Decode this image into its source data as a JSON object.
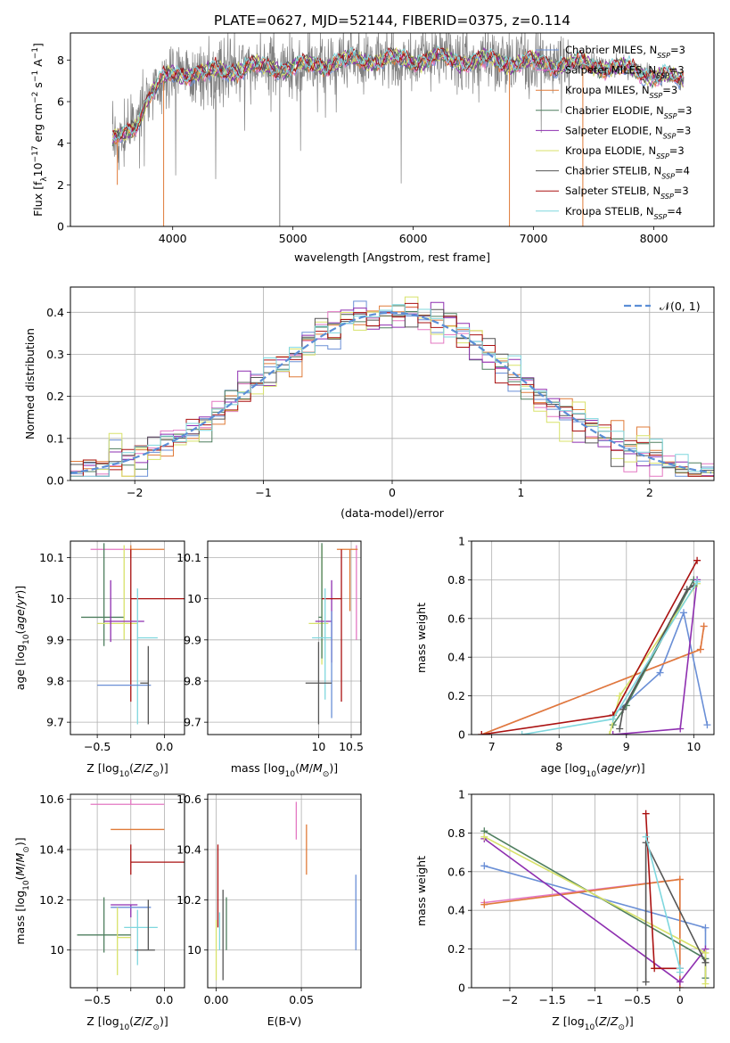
{
  "figure_title": "PLATE=0627, MJD=52144, FIBERID=0375, z=0.114",
  "colors": {
    "Chabrier MILES": "#6a8fd6",
    "Salpeter MILES": "#e377c2",
    "Kroupa MILES": "#e07b39",
    "Chabrier ELODIE": "#4f7f5f",
    "Salpeter ELODIE": "#8e2fb0",
    "Kroupa ELODIE": "#d8e26a",
    "Chabrier STELIB": "#555555",
    "Salpeter STELIB": "#aa1111",
    "Kroupa STELIB": "#7fd7de",
    "data": "#808080",
    "normal": "#5b8ed6"
  },
  "chart_data": [
    {
      "id": "spectrum",
      "type": "line",
      "xlabel": "wavelength [Angstrom, rest frame]",
      "ylabel": "Flux [f_λ 10^-17 erg cm^-2 s^-1 A^-1]",
      "xlim": [
        3150,
        8500
      ],
      "ylim": [
        0,
        9.3
      ],
      "xticks": [
        4000,
        5000,
        6000,
        7000,
        8000
      ],
      "yticks": [
        0,
        2,
        4,
        6,
        8
      ],
      "grid": false,
      "legend_position": "right",
      "legend": [
        {
          "label": "Chabrier MILES, N",
          "sub": "SSP",
          "suffix": "=3",
          "color": "#6a8fd6"
        },
        {
          "label": "Salpeter MILES, N",
          "sub": "SSP",
          "suffix": "=3",
          "color": "#e377c2"
        },
        {
          "label": "Kroupa MILES, N",
          "sub": "SSP",
          "suffix": "=3",
          "color": "#e07b39"
        },
        {
          "label": "Chabrier ELODIE, N",
          "sub": "SSP",
          "suffix": "=3",
          "color": "#4f7f5f"
        },
        {
          "label": "Salpeter ELODIE, N",
          "sub": "SSP",
          "suffix": "=3",
          "color": "#8e2fb0"
        },
        {
          "label": "Kroupa ELODIE, N",
          "sub": "SSP",
          "suffix": "=3",
          "color": "#d8e26a"
        },
        {
          "label": "Chabrier STELIB, N",
          "sub": "SSP",
          "suffix": "=4",
          "color": "#555555"
        },
        {
          "label": "Salpeter STELIB, N",
          "sub": "SSP",
          "suffix": "=3",
          "color": "#aa1111"
        },
        {
          "label": "Kroupa STELIB, N",
          "sub": "SSP",
          "suffix": "=4",
          "color": "#7fd7de"
        }
      ],
      "model_continuum": {
        "x": [
          3500,
          3600,
          3700,
          3800,
          3900,
          4000,
          4100,
          4200,
          4300,
          4400,
          4600,
          4800,
          5000,
          5200,
          5400,
          5600,
          5800,
          6000,
          6200,
          6400,
          6600,
          6800,
          7000,
          7200,
          7400,
          7600,
          7800,
          8000,
          8250
        ],
        "y": [
          4.1,
          4.3,
          5.0,
          6.3,
          6.9,
          7.3,
          7.4,
          7.4,
          7.3,
          7.5,
          7.6,
          7.7,
          7.6,
          7.8,
          7.9,
          8.0,
          8.0,
          8.0,
          8.05,
          8.0,
          7.95,
          7.9,
          7.85,
          7.8,
          7.8,
          7.7,
          7.5,
          7.3,
          7.0
        ]
      },
      "spike_drops": [
        {
          "x": 3540,
          "y0": 2.0,
          "color": "#e07b39"
        },
        {
          "x": 3925,
          "y0": 0,
          "color": "#e07b39"
        },
        {
          "x": 4890,
          "y0": 0,
          "color": "#808080"
        },
        {
          "x": 6800,
          "y0": 0,
          "color": "#e07b39"
        },
        {
          "x": 7410,
          "y0": 0,
          "color": "#e07b39"
        }
      ]
    },
    {
      "id": "residuals",
      "type": "histogram",
      "xlabel": "(data-model)/error",
      "ylabel": "Normed distribution",
      "xlim": [
        -2.5,
        2.5
      ],
      "ylim": [
        0,
        0.46
      ],
      "xticks": [
        -2,
        -1,
        0,
        1,
        2
      ],
      "yticks": [
        0.0,
        0.1,
        0.2,
        0.3,
        0.4
      ],
      "grid": true,
      "legend_position": "top-right",
      "legend_label": "𝒩(0, 1)"
    },
    {
      "id": "age_vs_Z",
      "type": "errorbar",
      "xlabel": "Z [log10(Z/Z⊙)]",
      "ylabel": "age  [log10(age/yr)]",
      "xlim": [
        -0.7,
        0.15
      ],
      "ylim": [
        9.67,
        10.14
      ],
      "xticks": [
        -0.5,
        -0.25,
        0.0
      ],
      "xticklabels": [
        "−0.5",
        "",
        "0.0"
      ],
      "yticks": [
        9.7,
        9.8,
        9.9,
        10.0,
        10.1
      ],
      "grid": true,
      "points": [
        {
          "c": "#e377c2",
          "x": -0.25,
          "xerr": [
            0.3,
            0.0
          ],
          "y": 10.12,
          "yerr": [
            0.0,
            0.0
          ]
        },
        {
          "c": "#e07b39",
          "x": -0.25,
          "xerr": [
            0.0,
            0.25
          ],
          "y": 10.12,
          "yerr": [
            0.02,
            0.01
          ]
        },
        {
          "c": "#4f7f5f",
          "x": -0.45,
          "xerr": [
            0.17,
            0.15
          ],
          "y": 9.955,
          "yerr": [
            0.07,
            0.18
          ]
        },
        {
          "c": "#d8e26a",
          "x": -0.3,
          "xerr": [
            0.2,
            0.1
          ],
          "y": 9.94,
          "yerr": [
            0.04,
            0.19
          ]
        },
        {
          "c": "#aa1111",
          "x": -0.25,
          "xerr": [
            0.0,
            0.4
          ],
          "y": 10.0,
          "yerr": [
            0.25,
            0.12
          ]
        },
        {
          "c": "#8e2fb0",
          "x": -0.4,
          "xerr": [
            0.05,
            0.25
          ],
          "y": 9.945,
          "yerr": [
            0.05,
            0.1
          ]
        },
        {
          "c": "#7fd7de",
          "x": -0.2,
          "xerr": [
            0.0,
            0.15
          ],
          "y": 9.905,
          "yerr": [
            0.21,
            0.12
          ]
        },
        {
          "c": "#6a8fd6",
          "x": -0.5,
          "xerr": [
            0.0,
            0.4
          ],
          "y": 9.79,
          "yerr": [
            0.0,
            0.0
          ]
        },
        {
          "c": "#555555",
          "x": -0.12,
          "xerr": [
            0.06,
            0.0
          ],
          "y": 9.795,
          "yerr": [
            0.1,
            0.09
          ]
        }
      ]
    },
    {
      "id": "age_vs_mass",
      "type": "errorbar",
      "xlabel": "mass [log10(M/M⊙)]",
      "ylabel": "",
      "xlim": [
        8.3,
        10.65
      ],
      "ylim": [
        9.67,
        10.14
      ],
      "xticks": [
        10.0,
        10.5
      ],
      "yticks": [
        9.7,
        9.8,
        9.9,
        10.0,
        10.1
      ],
      "grid": true,
      "points": [
        {
          "c": "#e377c2",
          "x": 10.58,
          "xerr": [
            0.0,
            0.0
          ],
          "y": 10.12,
          "yerr": [
            0.22,
            0.01
          ]
        },
        {
          "c": "#e07b39",
          "x": 10.48,
          "xerr": [
            0.2,
            0.12
          ],
          "y": 10.12,
          "yerr": [
            0.15,
            0.0
          ]
        },
        {
          "c": "#d8e26a",
          "x": 10.05,
          "xerr": [
            0.2,
            0.1
          ],
          "y": 9.94,
          "yerr": [
            0.1,
            0.19
          ]
        },
        {
          "c": "#4f7f5f",
          "x": 10.05,
          "xerr": [
            0.05,
            0.0
          ],
          "y": 9.955,
          "yerr": [
            0.1,
            0.18
          ]
        },
        {
          "c": "#8e2fb0",
          "x": 10.2,
          "xerr": [
            0.25,
            0.0
          ],
          "y": 9.945,
          "yerr": [
            0.1,
            0.1
          ]
        },
        {
          "c": "#aa1111",
          "x": 10.35,
          "xerr": [
            0.3,
            0.0
          ],
          "y": 10.0,
          "yerr": [
            0.25,
            0.12
          ]
        },
        {
          "c": "#7fd7de",
          "x": 10.1,
          "xerr": [
            0.2,
            0.1
          ],
          "y": 9.905,
          "yerr": [
            0.15,
            0.12
          ]
        },
        {
          "c": "#6a8fd6",
          "x": 10.2,
          "xerr": [
            0.0,
            0.0
          ],
          "y": 9.79,
          "yerr": [
            0.08,
            0.18
          ]
        },
        {
          "c": "#555555",
          "x": 10.0,
          "xerr": [
            0.2,
            0.2
          ],
          "y": 9.795,
          "yerr": [
            0.1,
            0.1
          ]
        }
      ]
    },
    {
      "id": "weight_vs_age",
      "type": "line",
      "xlabel": "age  [log10(age/yr)]",
      "ylabel": "mass weight",
      "xlim": [
        6.7,
        10.3
      ],
      "ylim": [
        0.0,
        1.0
      ],
      "xticks": [
        7,
        8,
        9,
        10
      ],
      "yticks": [
        0.0,
        0.2,
        0.4,
        0.6,
        0.8,
        1.0
      ],
      "grid": true,
      "series": [
        {
          "c": "#6a8fd6",
          "x": [
            8.8,
            9.5,
            9.85,
            10.2
          ],
          "y": [
            0.1,
            0.32,
            0.63,
            0.05
          ]
        },
        {
          "c": "#e377c2",
          "x": [
            6.85,
            10.1,
            10.15
          ],
          "y": [
            0.0,
            0.44,
            0.56
          ]
        },
        {
          "c": "#e07b39",
          "x": [
            6.85,
            10.1,
            10.15
          ],
          "y": [
            0.0,
            0.44,
            0.56
          ]
        },
        {
          "c": "#4f7f5f",
          "x": [
            8.8,
            9.0,
            10.0
          ],
          "y": [
            0.05,
            0.15,
            0.8
          ]
        },
        {
          "c": "#8e2fb0",
          "x": [
            8.8,
            9.8,
            10.05
          ],
          "y": [
            0.0,
            0.03,
            0.8
          ]
        },
        {
          "c": "#d8e26a",
          "x": [
            8.75,
            8.9,
            10.05
          ],
          "y": [
            0.0,
            0.2,
            0.78
          ]
        },
        {
          "c": "#555555",
          "x": [
            8.9,
            8.95,
            9.9,
            10.0
          ],
          "y": [
            0.03,
            0.13,
            0.75,
            0.77
          ]
        },
        {
          "c": "#aa1111",
          "x": [
            6.85,
            8.8,
            10.05
          ],
          "y": [
            0.0,
            0.1,
            0.9
          ]
        },
        {
          "c": "#7fd7de",
          "x": [
            7.45,
            8.8,
            10.05
          ],
          "y": [
            0.0,
            0.08,
            0.79
          ]
        }
      ]
    },
    {
      "id": "mass_vs_Z",
      "type": "errorbar",
      "xlabel": "Z [log10(Z/Z⊙)]",
      "ylabel": "mass [log10(M/M⊙)]",
      "xlim": [
        -0.7,
        0.15
      ],
      "ylim": [
        9.85,
        10.62
      ],
      "xticks": [
        -0.5,
        -0.25,
        0.0
      ],
      "xticklabels": [
        "−0.5",
        "",
        "0.0"
      ],
      "yticks": [
        10.0,
        10.2,
        10.4,
        10.6
      ],
      "grid": true,
      "points": [
        {
          "c": "#e377c2",
          "x": -0.25,
          "xerr": [
            0.3,
            0.25
          ],
          "y": 10.58,
          "yerr": [
            0.0,
            0.02
          ]
        },
        {
          "c": "#e07b39",
          "x": -0.25,
          "xerr": [
            0.15,
            0.25
          ],
          "y": 10.48,
          "yerr": [
            0.0,
            0.0
          ]
        },
        {
          "c": "#aa1111",
          "x": -0.25,
          "xerr": [
            0.0,
            0.4
          ],
          "y": 10.35,
          "yerr": [
            0.05,
            0.07
          ]
        },
        {
          "c": "#8e2fb0",
          "x": -0.25,
          "xerr": [
            0.15,
            0.05
          ],
          "y": 10.18,
          "yerr": [
            0.05,
            0.0
          ]
        },
        {
          "c": "#6a8fd6",
          "x": -0.4,
          "xerr": [
            0.0,
            0.3
          ],
          "y": 10.17,
          "yerr": [
            0.0,
            0.0
          ]
        },
        {
          "c": "#7fd7de",
          "x": -0.2,
          "xerr": [
            0.1,
            0.15
          ],
          "y": 10.09,
          "yerr": [
            0.15,
            0.07
          ]
        },
        {
          "c": "#4f7f5f",
          "x": -0.45,
          "xerr": [
            0.2,
            0.2
          ],
          "y": 10.06,
          "yerr": [
            0.07,
            0.15
          ]
        },
        {
          "c": "#d8e26a",
          "x": -0.35,
          "xerr": [
            0.0,
            0.1
          ],
          "y": 10.05,
          "yerr": [
            0.15,
            0.12
          ]
        },
        {
          "c": "#555555",
          "x": -0.12,
          "xerr": [
            0.1,
            0.05
          ],
          "y": 10.0,
          "yerr": [
            0.0,
            0.2
          ]
        }
      ]
    },
    {
      "id": "mass_vs_ebv",
      "type": "errorbar",
      "xlabel": "E(B-V)",
      "ylabel": "",
      "xlim": [
        -0.005,
        0.085
      ],
      "ylim": [
        9.85,
        10.62
      ],
      "xticks": [
        0.0,
        0.05
      ],
      "xticklabels": [
        "0.00",
        "0.05"
      ],
      "yticks": [
        10.0,
        10.2,
        10.4,
        10.6
      ],
      "grid": true,
      "points": [
        {
          "c": "#e377c2",
          "x": 0.047,
          "xerr": [
            0.0,
            0.0
          ],
          "y": 10.51,
          "yerr": [
            0.07,
            0.08
          ]
        },
        {
          "c": "#e07b39",
          "x": 0.053,
          "xerr": [
            0.0,
            0.0
          ],
          "y": 10.4,
          "yerr": [
            0.1,
            0.1
          ]
        },
        {
          "c": "#aa1111",
          "x": 0.001,
          "xerr": [
            0.0,
            0.0
          ],
          "y": 10.25,
          "yerr": [
            0.16,
            0.17
          ]
        },
        {
          "c": "#d8e26a",
          "x": 0.0,
          "xerr": [
            0.0,
            0.0
          ],
          "y": 10.02,
          "yerr": [
            0.14,
            0.1
          ]
        },
        {
          "c": "#555555",
          "x": 0.004,
          "xerr": [
            0.0,
            0.0
          ],
          "y": 10.05,
          "yerr": [
            0.17,
            0.19
          ]
        },
        {
          "c": "#4f7f5f",
          "x": 0.006,
          "xerr": [
            0.0,
            0.0
          ],
          "y": 10.1,
          "yerr": [
            0.1,
            0.11
          ]
        },
        {
          "c": "#7fd7de",
          "x": 0.002,
          "xerr": [
            0.0,
            0.0
          ],
          "y": 10.1,
          "yerr": [
            0.1,
            0.05
          ]
        },
        {
          "c": "#6a8fd6",
          "x": 0.082,
          "xerr": [
            0.0,
            0.0
          ],
          "y": 10.15,
          "yerr": [
            0.15,
            0.15
          ]
        }
      ]
    },
    {
      "id": "weight_vs_Z",
      "type": "line",
      "xlabel": "Z [log10(Z/Z⊙)]",
      "ylabel": "mass weight",
      "xlim": [
        -2.45,
        0.4
      ],
      "ylim": [
        0.0,
        1.0
      ],
      "xticks": [
        -2.0,
        -1.5,
        -1.0,
        -0.5,
        0.0
      ],
      "yticks": [
        0.0,
        0.2,
        0.4,
        0.6,
        0.8,
        1.0
      ],
      "grid": true,
      "series": [
        {
          "c": "#6a8fd6",
          "x": [
            -2.3,
            0.3,
            0.3
          ],
          "y": [
            0.63,
            0.31,
            0.05
          ]
        },
        {
          "c": "#e377c2",
          "x": [
            -2.3,
            0.0,
            0.0
          ],
          "y": [
            0.44,
            0.56,
            0.0
          ]
        },
        {
          "c": "#e07b39",
          "x": [
            -2.3,
            0.0,
            0.0
          ],
          "y": [
            0.43,
            0.56,
            0.0
          ]
        },
        {
          "c": "#4f7f5f",
          "x": [
            -2.3,
            0.3,
            0.3
          ],
          "y": [
            0.81,
            0.15,
            0.05
          ]
        },
        {
          "c": "#8e2fb0",
          "x": [
            -2.3,
            0.0,
            0.3
          ],
          "y": [
            0.77,
            0.03,
            0.2
          ]
        },
        {
          "c": "#d8e26a",
          "x": [
            -2.3,
            0.3,
            0.3
          ],
          "y": [
            0.78,
            0.18,
            0.02
          ]
        },
        {
          "c": "#555555",
          "x": [
            -0.4,
            -0.4,
            0.3
          ],
          "y": [
            0.03,
            0.75,
            0.13
          ]
        },
        {
          "c": "#aa1111",
          "x": [
            -0.4,
            -0.3,
            0.0
          ],
          "y": [
            0.9,
            0.1,
            0.1
          ]
        },
        {
          "c": "#7fd7de",
          "x": [
            -0.4,
            0.0,
            0.0
          ],
          "y": [
            0.78,
            0.1,
            0.08
          ]
        }
      ]
    }
  ]
}
